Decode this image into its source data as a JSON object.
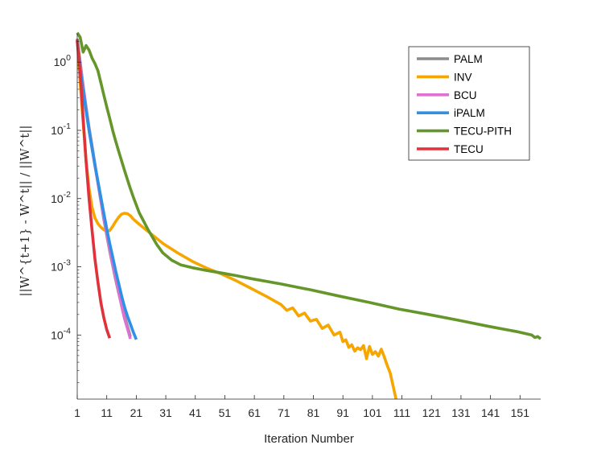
{
  "chart_data": {
    "type": "line",
    "title": "",
    "xlabel": "Iteration Number",
    "ylabel": "||W^{t+1} - W^t|| / ||W^t||",
    "xlim": [
      1,
      158
    ],
    "ylim": [
      1.15e-05,
      2.6
    ],
    "yscale": "log",
    "grid": false,
    "legend_position": "top-right",
    "x_ticks": [
      1,
      11,
      21,
      31,
      41,
      51,
      61,
      71,
      81,
      91,
      101,
      111,
      121,
      131,
      141,
      151
    ],
    "x_tick_labels": [
      "1",
      "11",
      "21",
      "31",
      "41",
      "51",
      "61",
      "71",
      "81",
      "91",
      "101",
      "111",
      "121",
      "131",
      "141",
      "151"
    ],
    "y_ticks": [
      1,
      0.1,
      0.01,
      0.001,
      0.0001
    ],
    "y_tick_labels": [
      {
        "base": "10",
        "exp": "0"
      },
      {
        "base": "10",
        "exp": "-1"
      },
      {
        "base": "10",
        "exp": "-2"
      },
      {
        "base": "10",
        "exp": "-3"
      },
      {
        "base": "10",
        "exp": "-4"
      }
    ],
    "series": [
      {
        "name": "PALM",
        "color": "#8c8c8c",
        "x": [
          1,
          2,
          3,
          4,
          5,
          6,
          7,
          8,
          9,
          10,
          11,
          12,
          13,
          14,
          15,
          16,
          17,
          18,
          19
        ],
        "y": [
          2.2,
          1.0,
          0.45,
          0.22,
          0.11,
          0.06,
          0.032,
          0.017,
          0.0092,
          0.005,
          0.0029,
          0.0017,
          0.00105,
          0.00065,
          0.00042,
          0.00028,
          0.00019,
          0.000135,
          9.5e-05
        ]
      },
      {
        "name": "INV",
        "color": "#f7a600",
        "x": [
          1,
          2,
          3,
          4,
          5,
          6,
          7,
          8,
          9,
          10,
          11,
          12,
          13,
          14,
          15,
          16,
          17,
          18,
          19,
          20,
          22,
          25,
          30,
          35,
          40,
          45,
          50,
          55,
          60,
          65,
          70,
          72,
          74,
          76,
          78,
          80,
          82,
          84,
          86,
          88,
          90,
          91,
          92,
          93,
          94,
          95,
          96,
          97,
          98,
          99,
          100,
          101,
          102,
          103,
          104,
          105,
          106,
          107,
          108,
          109
        ],
        "y": [
          2.1,
          0.5,
          0.13,
          0.035,
          0.014,
          0.0075,
          0.0052,
          0.0043,
          0.0038,
          0.0035,
          0.0033,
          0.0034,
          0.0039,
          0.0046,
          0.0053,
          0.0059,
          0.0061,
          0.006,
          0.0056,
          0.005,
          0.0042,
          0.0033,
          0.0022,
          0.0016,
          0.0012,
          0.00095,
          0.00078,
          0.00062,
          0.00048,
          0.00037,
          0.00028,
          0.00023,
          0.00025,
          0.00019,
          0.00021,
          0.00016,
          0.00017,
          0.000125,
          0.00014,
          0.0001,
          0.00011,
          8e-05,
          8.5e-05,
          6.6e-05,
          7.2e-05,
          5.8e-05,
          6.5e-05,
          6.1e-05,
          7e-05,
          4.5e-05,
          6.8e-05,
          5.2e-05,
          5.7e-05,
          4.9e-05,
          6.2e-05,
          4.8e-05,
          3.6e-05,
          2.8e-05,
          1.8e-05,
          1.15e-05
        ]
      },
      {
        "name": "BCU",
        "color": "#dd72d0",
        "x": [
          1,
          2,
          3,
          4,
          5,
          6,
          7,
          8,
          9,
          10,
          11,
          12,
          13,
          14,
          15,
          16,
          17,
          18,
          19
        ],
        "y": [
          2.0,
          0.9,
          0.42,
          0.2,
          0.1,
          0.055,
          0.03,
          0.017,
          0.0095,
          0.0053,
          0.003,
          0.0018,
          0.0011,
          0.0007,
          0.00043,
          0.00027,
          0.000175,
          0.000125,
          8.8e-05
        ]
      },
      {
        "name": "iPALM",
        "color": "#2f90e6",
        "x": [
          1,
          2,
          3,
          4,
          5,
          6,
          7,
          8,
          9,
          10,
          11,
          12,
          13,
          14,
          15,
          16,
          17,
          18,
          19,
          20,
          21
        ],
        "y": [
          2.1,
          0.8,
          0.38,
          0.19,
          0.1,
          0.055,
          0.031,
          0.018,
          0.0105,
          0.0061,
          0.0036,
          0.0022,
          0.0014,
          0.00088,
          0.00058,
          0.00038,
          0.00026,
          0.00019,
          0.000145,
          0.00011,
          8.6e-05
        ]
      },
      {
        "name": "TECU-PITH",
        "color": "#64962a",
        "x": [
          1,
          2,
          3,
          4,
          5,
          6,
          7,
          8,
          9,
          10,
          11,
          12,
          13,
          14,
          15,
          16,
          17,
          18,
          19,
          20,
          22,
          25,
          28,
          30,
          33,
          36,
          40,
          45,
          50,
          55,
          60,
          70,
          80,
          90,
          100,
          110,
          120,
          130,
          140,
          150,
          155,
          156,
          157,
          158
        ],
        "y": [
          2.7,
          2.3,
          1.4,
          1.75,
          1.5,
          1.15,
          0.95,
          0.75,
          0.5,
          0.33,
          0.22,
          0.15,
          0.1,
          0.07,
          0.05,
          0.036,
          0.026,
          0.019,
          0.014,
          0.0105,
          0.0062,
          0.0035,
          0.0021,
          0.0016,
          0.00125,
          0.00107,
          0.00097,
          0.00088,
          0.00081,
          0.00074,
          0.00067,
          0.00056,
          0.00046,
          0.00037,
          0.0003,
          0.00024,
          0.0002,
          0.000165,
          0.000135,
          0.000112,
          0.0001,
          9.2e-05,
          9.5e-05,
          8.8e-05
        ]
      },
      {
        "name": "TECU",
        "color": "#e1313a",
        "x": [
          1,
          2,
          3,
          4,
          5,
          6,
          7,
          8,
          9,
          10,
          11,
          12
        ],
        "y": [
          2.1,
          0.7,
          0.15,
          0.035,
          0.01,
          0.0035,
          0.0013,
          0.0006,
          0.0003,
          0.00018,
          0.00012,
          9e-05
        ]
      }
    ]
  }
}
